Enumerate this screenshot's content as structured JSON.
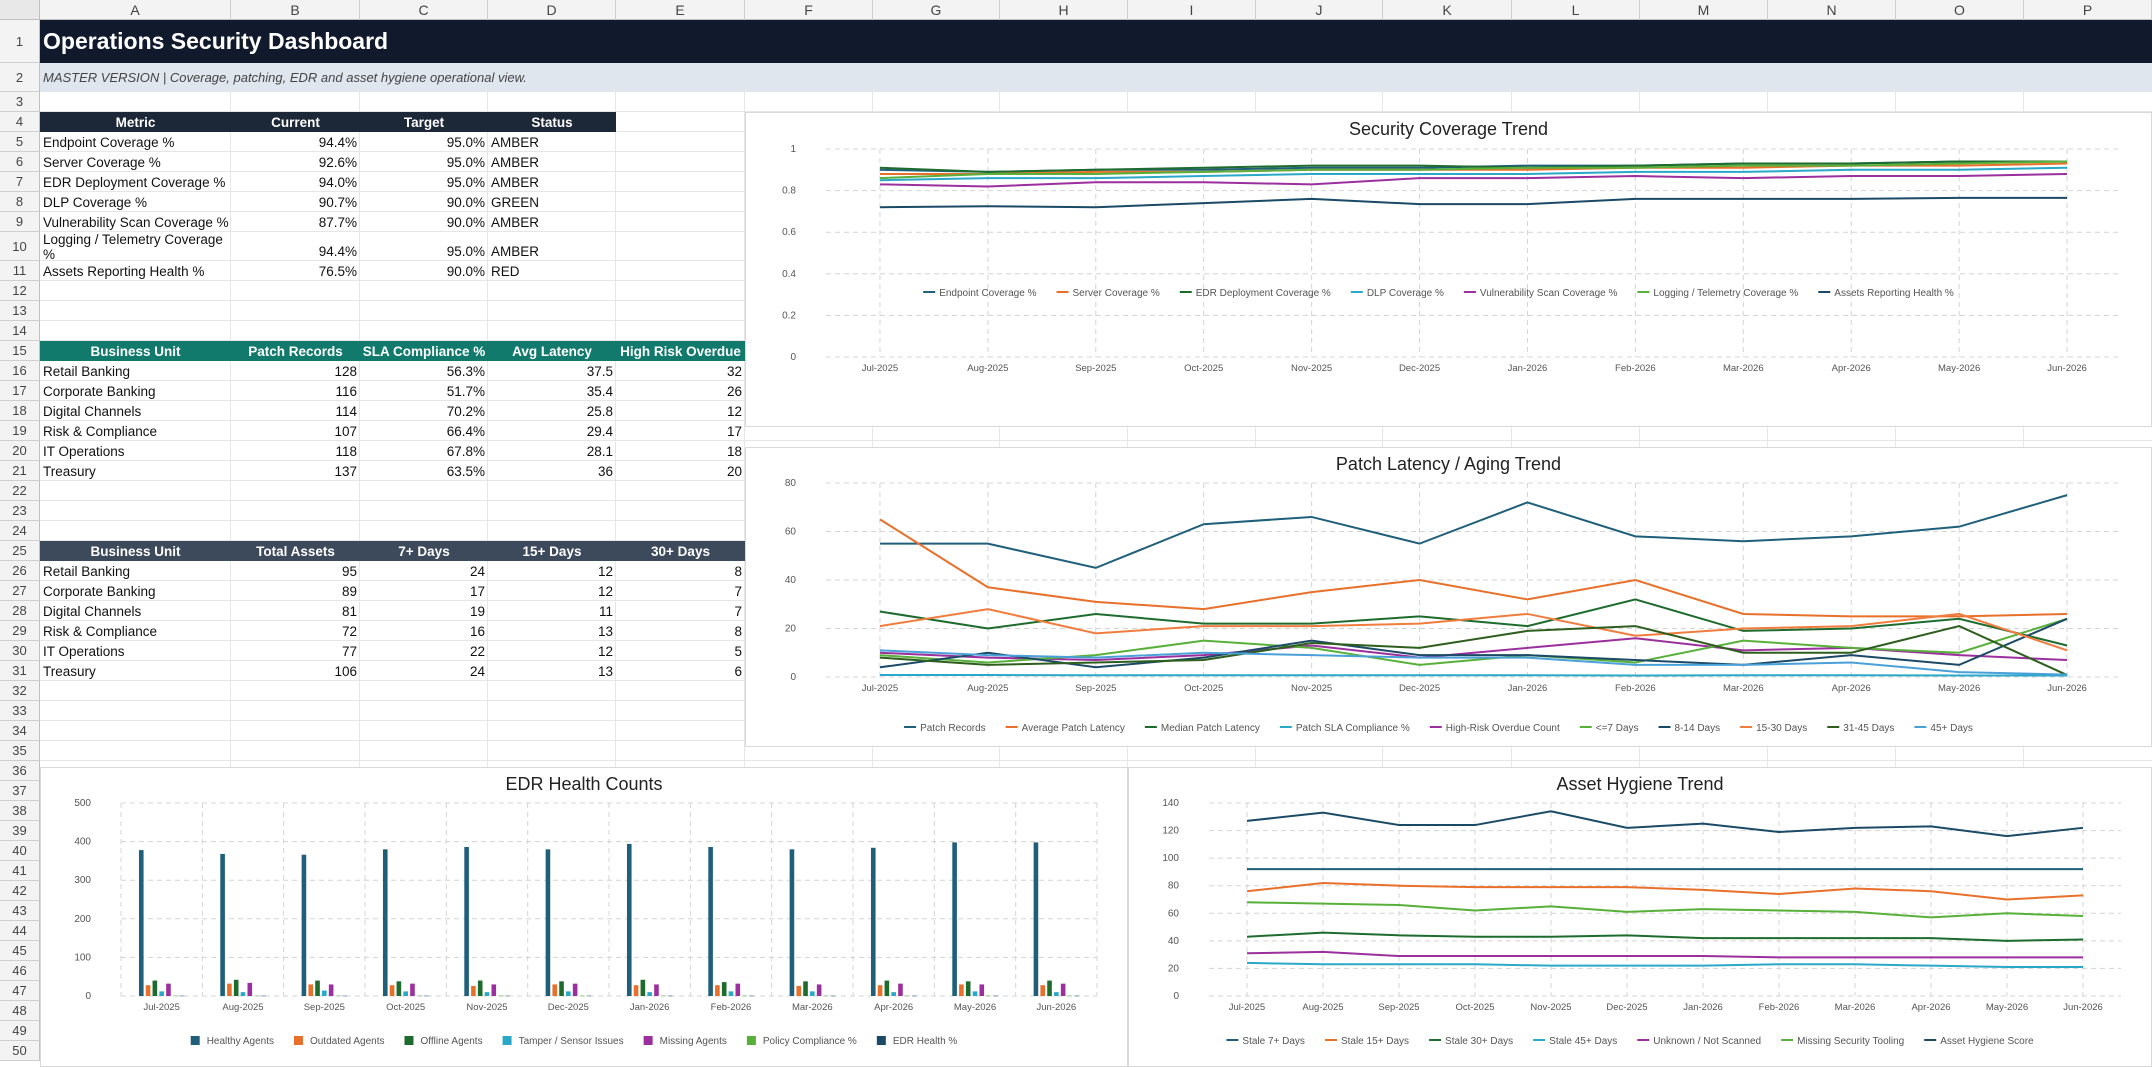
{
  "sheet": {
    "columns": [
      "A",
      "B",
      "C",
      "D",
      "E",
      "F",
      "G",
      "H",
      "I",
      "J",
      "K",
      "L",
      "M",
      "N",
      "O",
      "P"
    ],
    "rows": [
      "1",
      "2",
      "3",
      "4",
      "5",
      "6",
      "7",
      "8",
      "9",
      "10",
      "11",
      "12",
      "13",
      "14",
      "15",
      "16",
      "17",
      "18",
      "19",
      "20",
      "21",
      "22",
      "23",
      "24",
      "25",
      "26",
      "27",
      "28",
      "29",
      "30",
      "31",
      "32",
      "33",
      "34",
      "35",
      "36",
      "37",
      "38",
      "39",
      "40",
      "41",
      "42",
      "43",
      "44",
      "45",
      "46",
      "47",
      "48",
      "49",
      "50"
    ],
    "title": "Operations Security Dashboard",
    "subtitle": "MASTER VERSION | Coverage, patching, EDR and asset hygiene operational view."
  },
  "colors": {
    "title_bg": "#111a2c",
    "subtitle_bg": "#dfe6ee",
    "metric_header_bg": "#1c2738",
    "patch_header_bg": "#117a6d",
    "aging_header_bg": "#3d4a5c"
  },
  "metrics_table": {
    "headers": [
      "Metric",
      "Current",
      "Target",
      "Status"
    ],
    "rows": [
      [
        "Endpoint Coverage %",
        "94.4%",
        "95.0%",
        "AMBER"
      ],
      [
        "Server Coverage %",
        "92.6%",
        "95.0%",
        "AMBER"
      ],
      [
        "EDR Deployment Coverage %",
        "94.0%",
        "95.0%",
        "AMBER"
      ],
      [
        "DLP Coverage %",
        "90.7%",
        "90.0%",
        "GREEN"
      ],
      [
        "Vulnerability Scan Coverage %",
        "87.7%",
        "90.0%",
        "AMBER"
      ],
      [
        "Logging / Telemetry Coverage %",
        "94.4%",
        "95.0%",
        "AMBER"
      ],
      [
        "Assets Reporting Health %",
        "76.5%",
        "90.0%",
        "RED"
      ]
    ]
  },
  "patch_table": {
    "headers": [
      "Business Unit",
      "Patch Records",
      "SLA Compliance %",
      "Avg Latency",
      "High Risk Overdue"
    ],
    "rows": [
      [
        "Retail Banking",
        "128",
        "56.3%",
        "37.5",
        "32"
      ],
      [
        "Corporate Banking",
        "116",
        "51.7%",
        "35.4",
        "26"
      ],
      [
        "Digital Channels",
        "114",
        "70.2%",
        "25.8",
        "12"
      ],
      [
        "Risk & Compliance",
        "107",
        "66.4%",
        "29.4",
        "17"
      ],
      [
        "IT Operations",
        "118",
        "67.8%",
        "28.1",
        "18"
      ],
      [
        "Treasury",
        "137",
        "63.5%",
        "36",
        "20"
      ]
    ]
  },
  "aging_table": {
    "headers": [
      "Business Unit",
      "Total Assets",
      "7+ Days",
      "15+ Days",
      "30+ Days"
    ],
    "rows": [
      [
        "Retail Banking",
        "95",
        "24",
        "12",
        "8"
      ],
      [
        "Corporate Banking",
        "89",
        "17",
        "12",
        "7"
      ],
      [
        "Digital Channels",
        "81",
        "19",
        "11",
        "7"
      ],
      [
        "Risk & Compliance",
        "72",
        "16",
        "13",
        "8"
      ],
      [
        "IT Operations",
        "77",
        "22",
        "12",
        "5"
      ],
      [
        "Treasury",
        "106",
        "24",
        "13",
        "6"
      ]
    ]
  },
  "chart_data": [
    {
      "id": "coverage",
      "type": "line",
      "title": "Security Coverage Trend",
      "categories": [
        "Jul-2025",
        "Aug-2025",
        "Sep-2025",
        "Oct-2025",
        "Nov-2025",
        "Dec-2025",
        "Jan-2026",
        "Feb-2026",
        "Mar-2026",
        "Apr-2026",
        "May-2026",
        "Jun-2026"
      ],
      "ylim": [
        0,
        1
      ],
      "yticks": [
        0,
        0.2,
        0.4,
        0.6,
        0.8,
        1
      ],
      "ytick_labels": [
        "0",
        "0.2",
        "0.4",
        "0.6",
        "0.8",
        "1"
      ],
      "grid": true,
      "legend": "bottom",
      "series": [
        {
          "name": "Endpoint Coverage %",
          "color": "#1f5f7a",
          "values": [
            0.9,
            0.89,
            0.9,
            0.9,
            0.91,
            0.91,
            0.92,
            0.92,
            0.93,
            0.93,
            0.94,
            0.94
          ]
        },
        {
          "name": "Server Coverage %",
          "color": "#e8702a",
          "values": [
            0.88,
            0.88,
            0.89,
            0.89,
            0.9,
            0.9,
            0.9,
            0.91,
            0.91,
            0.92,
            0.92,
            0.93
          ]
        },
        {
          "name": "EDR Deployment Coverage %",
          "color": "#1e6b2e",
          "values": [
            0.91,
            0.89,
            0.9,
            0.91,
            0.92,
            0.92,
            0.91,
            0.92,
            0.93,
            0.93,
            0.94,
            0.94
          ]
        },
        {
          "name": "DLP Coverage %",
          "color": "#2aa8c8",
          "values": [
            0.85,
            0.86,
            0.86,
            0.87,
            0.88,
            0.88,
            0.88,
            0.89,
            0.89,
            0.9,
            0.9,
            0.91
          ]
        },
        {
          "name": "Vulnerability Scan Coverage %",
          "color": "#9b2f9e",
          "values": [
            0.83,
            0.82,
            0.84,
            0.84,
            0.83,
            0.86,
            0.86,
            0.87,
            0.86,
            0.87,
            0.87,
            0.88
          ]
        },
        {
          "name": "Logging / Telemetry Coverage %",
          "color": "#58b03a",
          "values": [
            0.86,
            0.88,
            0.88,
            0.89,
            0.9,
            0.9,
            0.91,
            0.91,
            0.92,
            0.92,
            0.93,
            0.94
          ]
        },
        {
          "name": "Assets Reporting Health %",
          "color": "#1b4a66",
          "values": [
            0.72,
            0.725,
            0.72,
            0.74,
            0.76,
            0.735,
            0.735,
            0.76,
            0.76,
            0.76,
            0.765,
            0.765
          ]
        }
      ]
    },
    {
      "id": "patch",
      "type": "line",
      "title": "Patch Latency / Aging Trend",
      "categories": [
        "Jul-2025",
        "Aug-2025",
        "Sep-2025",
        "Oct-2025",
        "Nov-2025",
        "Dec-2025",
        "Jan-2026",
        "Feb-2026",
        "Mar-2026",
        "Apr-2026",
        "May-2026",
        "Jun-2026"
      ],
      "ylim": [
        0,
        80
      ],
      "yticks": [
        0,
        20,
        40,
        60,
        80
      ],
      "ytick_labels": [
        "0",
        "20",
        "40",
        "60",
        "80"
      ],
      "grid": true,
      "legend": "bottom",
      "series": [
        {
          "name": "Patch Records",
          "color": "#1f5f7a",
          "values": [
            55,
            55,
            45,
            63,
            66,
            55,
            72,
            58,
            56,
            58,
            62,
            75
          ]
        },
        {
          "name": "Average Patch Latency",
          "color": "#e8702a",
          "values": [
            65,
            37,
            31,
            28,
            35,
            40,
            32,
            40,
            26,
            25,
            25,
            26
          ]
        },
        {
          "name": "Median Patch Latency",
          "color": "#1e6b2e",
          "values": [
            27,
            20,
            26,
            22,
            22,
            25,
            21,
            32,
            19,
            20,
            24,
            13
          ]
        },
        {
          "name": "Patch SLA Compliance %",
          "color": "#2aa8c8",
          "values": [
            0.8,
            0.8,
            0.7,
            0.7,
            0.7,
            0.7,
            0.7,
            0.6,
            0.7,
            0.7,
            0.6,
            0.6
          ]
        },
        {
          "name": "High-Risk Overdue Count",
          "color": "#9b2f9e",
          "values": [
            10,
            8,
            7,
            9,
            13,
            8,
            12,
            16,
            11,
            12,
            9,
            7
          ]
        },
        {
          "name": "<=7 Days",
          "color": "#58b03a",
          "values": [
            9,
            6,
            9,
            15,
            12,
            5,
            9,
            6,
            15,
            12,
            10,
            24
          ]
        },
        {
          "name": "8-14 Days",
          "color": "#1b4a66",
          "values": [
            4,
            10,
            4,
            8,
            15,
            9,
            9,
            7,
            5,
            9,
            5,
            24
          ]
        },
        {
          "name": "15-30 Days",
          "color": "#f07c3e",
          "values": [
            21,
            28,
            18,
            21,
            21,
            22,
            26,
            17,
            20,
            21,
            26,
            11
          ]
        },
        {
          "name": "31-45 Days",
          "color": "#2e5e1e",
          "values": [
            8,
            5,
            6,
            7,
            14,
            12,
            19,
            21,
            10,
            10,
            21,
            0.8
          ]
        },
        {
          "name": "45+ Days",
          "color": "#4aa0d8",
          "values": [
            11,
            9,
            8,
            10,
            9,
            8,
            8,
            5,
            5,
            6,
            2,
            1
          ]
        }
      ]
    },
    {
      "id": "edr",
      "type": "bar",
      "title": "EDR Health Counts",
      "categories": [
        "Jul-2025",
        "Aug-2025",
        "Sep-2025",
        "Oct-2025",
        "Nov-2025",
        "Dec-2025",
        "Jan-2026",
        "Feb-2026",
        "Mar-2026",
        "Apr-2026",
        "May-2026",
        "Jun-2026"
      ],
      "ylim": [
        0,
        500
      ],
      "yticks": [
        0,
        100,
        200,
        300,
        400,
        500
      ],
      "ytick_labels": [
        "0",
        "100",
        "200",
        "300",
        "400",
        "500"
      ],
      "grid": true,
      "legend": "bottom",
      "series": [
        {
          "name": "Healthy Agents",
          "color": "#1f5f7a",
          "values": [
            378,
            368,
            366,
            380,
            386,
            380,
            394,
            386,
            380,
            384,
            398,
            398
          ]
        },
        {
          "name": "Outdated Agents",
          "color": "#e8702a",
          "values": [
            28,
            32,
            30,
            28,
            26,
            30,
            28,
            28,
            26,
            28,
            30,
            28
          ]
        },
        {
          "name": "Offline Agents",
          "color": "#1e6b2e",
          "values": [
            40,
            42,
            40,
            38,
            40,
            38,
            42,
            36,
            38,
            40,
            38,
            40
          ]
        },
        {
          "name": "Tamper / Sensor Issues",
          "color": "#2aa8c8",
          "values": [
            12,
            10,
            14,
            12,
            10,
            12,
            10,
            12,
            12,
            10,
            12,
            10
          ]
        },
        {
          "name": "Missing Agents",
          "color": "#9b2f9e",
          "values": [
            32,
            34,
            30,
            32,
            30,
            32,
            30,
            32,
            30,
            32,
            30,
            32
          ]
        },
        {
          "name": "Policy Compliance %",
          "color": "#58b03a",
          "values": [
            0.9,
            0.9,
            0.9,
            0.9,
            0.9,
            0.9,
            0.9,
            0.9,
            0.9,
            0.9,
            0.9,
            0.9
          ]
        },
        {
          "name": "EDR Health %",
          "color": "#1b4a66",
          "values": [
            0.8,
            0.8,
            0.8,
            0.8,
            0.8,
            0.8,
            0.8,
            0.8,
            0.8,
            0.8,
            0.8,
            0.8
          ]
        }
      ]
    },
    {
      "id": "hygiene",
      "type": "line",
      "title": "Asset Hygiene Trend",
      "categories": [
        "Jul-2025",
        "Aug-2025",
        "Sep-2025",
        "Oct-2025",
        "Nov-2025",
        "Dec-2025",
        "Jan-2026",
        "Feb-2026",
        "Mar-2026",
        "Apr-2026",
        "May-2026",
        "Jun-2026"
      ],
      "ylim": [
        0,
        140
      ],
      "yticks": [
        0,
        20,
        40,
        60,
        80,
        100,
        120,
        140
      ],
      "ytick_labels": [
        "0",
        "20",
        "40",
        "60",
        "80",
        "100",
        "120",
        "140"
      ],
      "grid": true,
      "legend": "bottom",
      "series": [
        {
          "name": "Stale 7+ Days",
          "color": "#1f5f7a",
          "values": [
            92,
            92,
            92,
            92,
            92,
            92,
            92,
            92,
            92,
            92,
            92,
            92
          ]
        },
        {
          "name": "Stale 15+ Days",
          "color": "#e8702a",
          "values": [
            76,
            82,
            80,
            79,
            79,
            79,
            77,
            74,
            78,
            76,
            70,
            73
          ]
        },
        {
          "name": "Stale 30+ Days",
          "color": "#1e6b2e",
          "values": [
            43,
            46,
            44,
            43,
            43,
            44,
            42,
            42,
            42,
            42,
            40,
            41
          ]
        },
        {
          "name": "Stale 45+ Days",
          "color": "#2aa8c8",
          "values": [
            24,
            23,
            23,
            23,
            22,
            22,
            22,
            23,
            23,
            22,
            21,
            21
          ]
        },
        {
          "name": "Unknown / Not Scanned",
          "color": "#9b2f9e",
          "values": [
            31,
            32,
            29,
            29,
            29,
            29,
            29,
            28,
            28,
            28,
            28,
            28
          ]
        },
        {
          "name": "Missing Security Tooling",
          "color": "#58b03a",
          "values": [
            68,
            67,
            66,
            62,
            65,
            61,
            63,
            62,
            61,
            57,
            60,
            58
          ]
        },
        {
          "name": "Asset Hygiene Score",
          "color": "#1b4a66",
          "values": [
            127,
            133,
            124,
            124,
            134,
            122,
            125,
            119,
            122,
            123,
            116,
            122
          ]
        }
      ]
    }
  ]
}
